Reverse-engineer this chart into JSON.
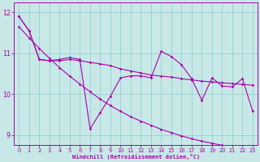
{
  "bg_color": "#c8e8e8",
  "line_color": "#aa00aa",
  "grid_color": "#88cccc",
  "ylim": [
    8.75,
    12.25
  ],
  "xlim": [
    -0.5,
    23.5
  ],
  "yticks": [
    9,
    10,
    11,
    12
  ],
  "xticks": [
    0,
    1,
    2,
    3,
    4,
    5,
    6,
    7,
    8,
    9,
    10,
    11,
    12,
    13,
    14,
    15,
    16,
    17,
    18,
    19,
    20,
    21,
    22,
    23
  ],
  "xlabel": "Windchill (Refroidissement éolien,°C)",
  "y_jagged": [
    11.9,
    11.55,
    10.85,
    10.82,
    10.85,
    10.9,
    10.85,
    9.15,
    9.55,
    9.95,
    10.4,
    10.45,
    10.45,
    10.4,
    11.05,
    10.92,
    10.72,
    10.38,
    9.85,
    10.4,
    10.2,
    10.18,
    10.38,
    9.58
  ],
  "y_flat": [
    11.9,
    11.55,
    10.85,
    10.82,
    10.82,
    10.85,
    10.82,
    10.78,
    10.74,
    10.7,
    10.62,
    10.57,
    10.52,
    10.47,
    10.44,
    10.42,
    10.38,
    10.35,
    10.32,
    10.3,
    10.28,
    10.26,
    10.24,
    10.22
  ],
  "y_trend": [
    11.65,
    11.38,
    11.12,
    10.88,
    10.65,
    10.44,
    10.25,
    10.06,
    9.88,
    9.72,
    9.58,
    9.45,
    9.34,
    9.24,
    9.14,
    9.06,
    8.98,
    8.91,
    8.85,
    8.8,
    8.75,
    8.72,
    8.68,
    8.65
  ]
}
